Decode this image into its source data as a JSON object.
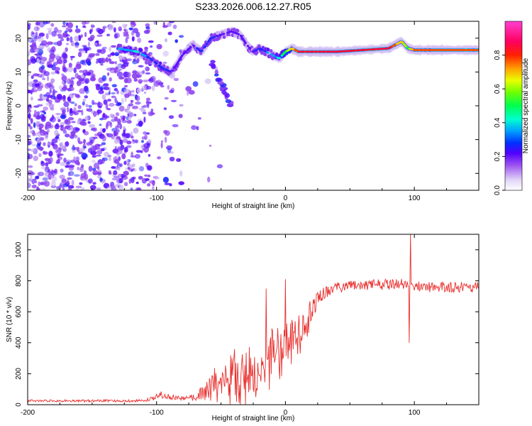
{
  "figure_title": "S233.2026.006.12.27.R05",
  "chart_data": [
    {
      "type": "heatmap",
      "panel": "top",
      "xlabel": "Height of straight line (km)",
      "ylabel": "Frequency (Hz)",
      "xlim": [
        -200,
        150
      ],
      "ylim": [
        -25,
        25
      ],
      "xticks": [
        -200,
        -100,
        0,
        100
      ],
      "yticks": [
        -20,
        -10,
        0,
        10,
        20
      ],
      "colorbar": {
        "label": "Normalized spectral amplitude",
        "range": [
          0.0,
          1.0
        ],
        "ticks": [
          0.0,
          0.2,
          0.4,
          0.6,
          0.8
        ],
        "colors": [
          "#ffffff",
          "#c8b4f0",
          "#7a30e8",
          "#3c00ff",
          "#0050ff",
          "#00ccff",
          "#00ff66",
          "#ccff00",
          "#ff6600",
          "#ff0044",
          "#ff44cc"
        ]
      },
      "ridge": {
        "x": [
          -130,
          -115,
          -105,
          -95,
          -88,
          -80,
          -72,
          -65,
          -58,
          -50,
          -42,
          -35,
          -30,
          -25,
          -20,
          -15,
          -10,
          -5,
          0,
          5,
          10,
          20,
          40,
          60,
          80,
          85,
          90,
          95,
          100,
          120,
          150
        ],
        "y": [
          17,
          16,
          14,
          11,
          10,
          15,
          18,
          16,
          20,
          21,
          22,
          21,
          18,
          16,
          17,
          16,
          15,
          14,
          16,
          17,
          16,
          16,
          16,
          16.5,
          17,
          18,
          19,
          17,
          16.5,
          16.5,
          16.5
        ],
        "amplitude": [
          0.4,
          0.5,
          0.35,
          0.4,
          0.3,
          0.3,
          0.3,
          0.35,
          0.35,
          0.3,
          0.3,
          0.3,
          0.25,
          0.3,
          0.4,
          0.4,
          0.45,
          0.5,
          0.6,
          0.7,
          0.8,
          0.85,
          0.8,
          0.85,
          0.85,
          0.75,
          0.7,
          0.6,
          0.75,
          0.8,
          0.8
        ]
      },
      "branch": {
        "x": [
          -58,
          -52,
          -48,
          -44,
          -42
        ],
        "y": [
          14,
          8,
          5,
          1,
          0
        ]
      }
    },
    {
      "type": "line",
      "panel": "bottom",
      "xlabel": "Height of straight line (km)",
      "ylabel": "SNR (10 * v/v)",
      "xlim": [
        -200,
        150
      ],
      "ylim": [
        0,
        1100
      ],
      "xticks": [
        -200,
        -100,
        0,
        100
      ],
      "yticks": [
        0,
        200,
        400,
        600,
        800,
        1000
      ],
      "color": "#e8302e",
      "profile": {
        "x": [
          -200,
          -110,
          -100,
          -95,
          -90,
          -80,
          -70,
          -60,
          -50,
          -40,
          -30,
          -20,
          -10,
          0,
          10,
          20,
          25,
          30,
          40,
          60,
          90,
          95,
          100,
          150
        ],
        "mean": [
          25,
          25,
          50,
          70,
          55,
          40,
          45,
          100,
          180,
          210,
          220,
          280,
          380,
          420,
          480,
          610,
          680,
          720,
          760,
          770,
          780,
          760,
          760,
          760
        ],
        "noise": [
          8,
          8,
          20,
          30,
          20,
          15,
          25,
          80,
          120,
          150,
          150,
          150,
          150,
          120,
          100,
          70,
          50,
          40,
          35,
          35,
          35,
          35,
          35,
          35
        ]
      },
      "spikes": [
        {
          "x": 97,
          "y": 1100
        },
        {
          "x": 96,
          "y": 400
        },
        {
          "x": 0,
          "y": 810
        },
        {
          "x": -15,
          "y": 750
        }
      ]
    }
  ]
}
